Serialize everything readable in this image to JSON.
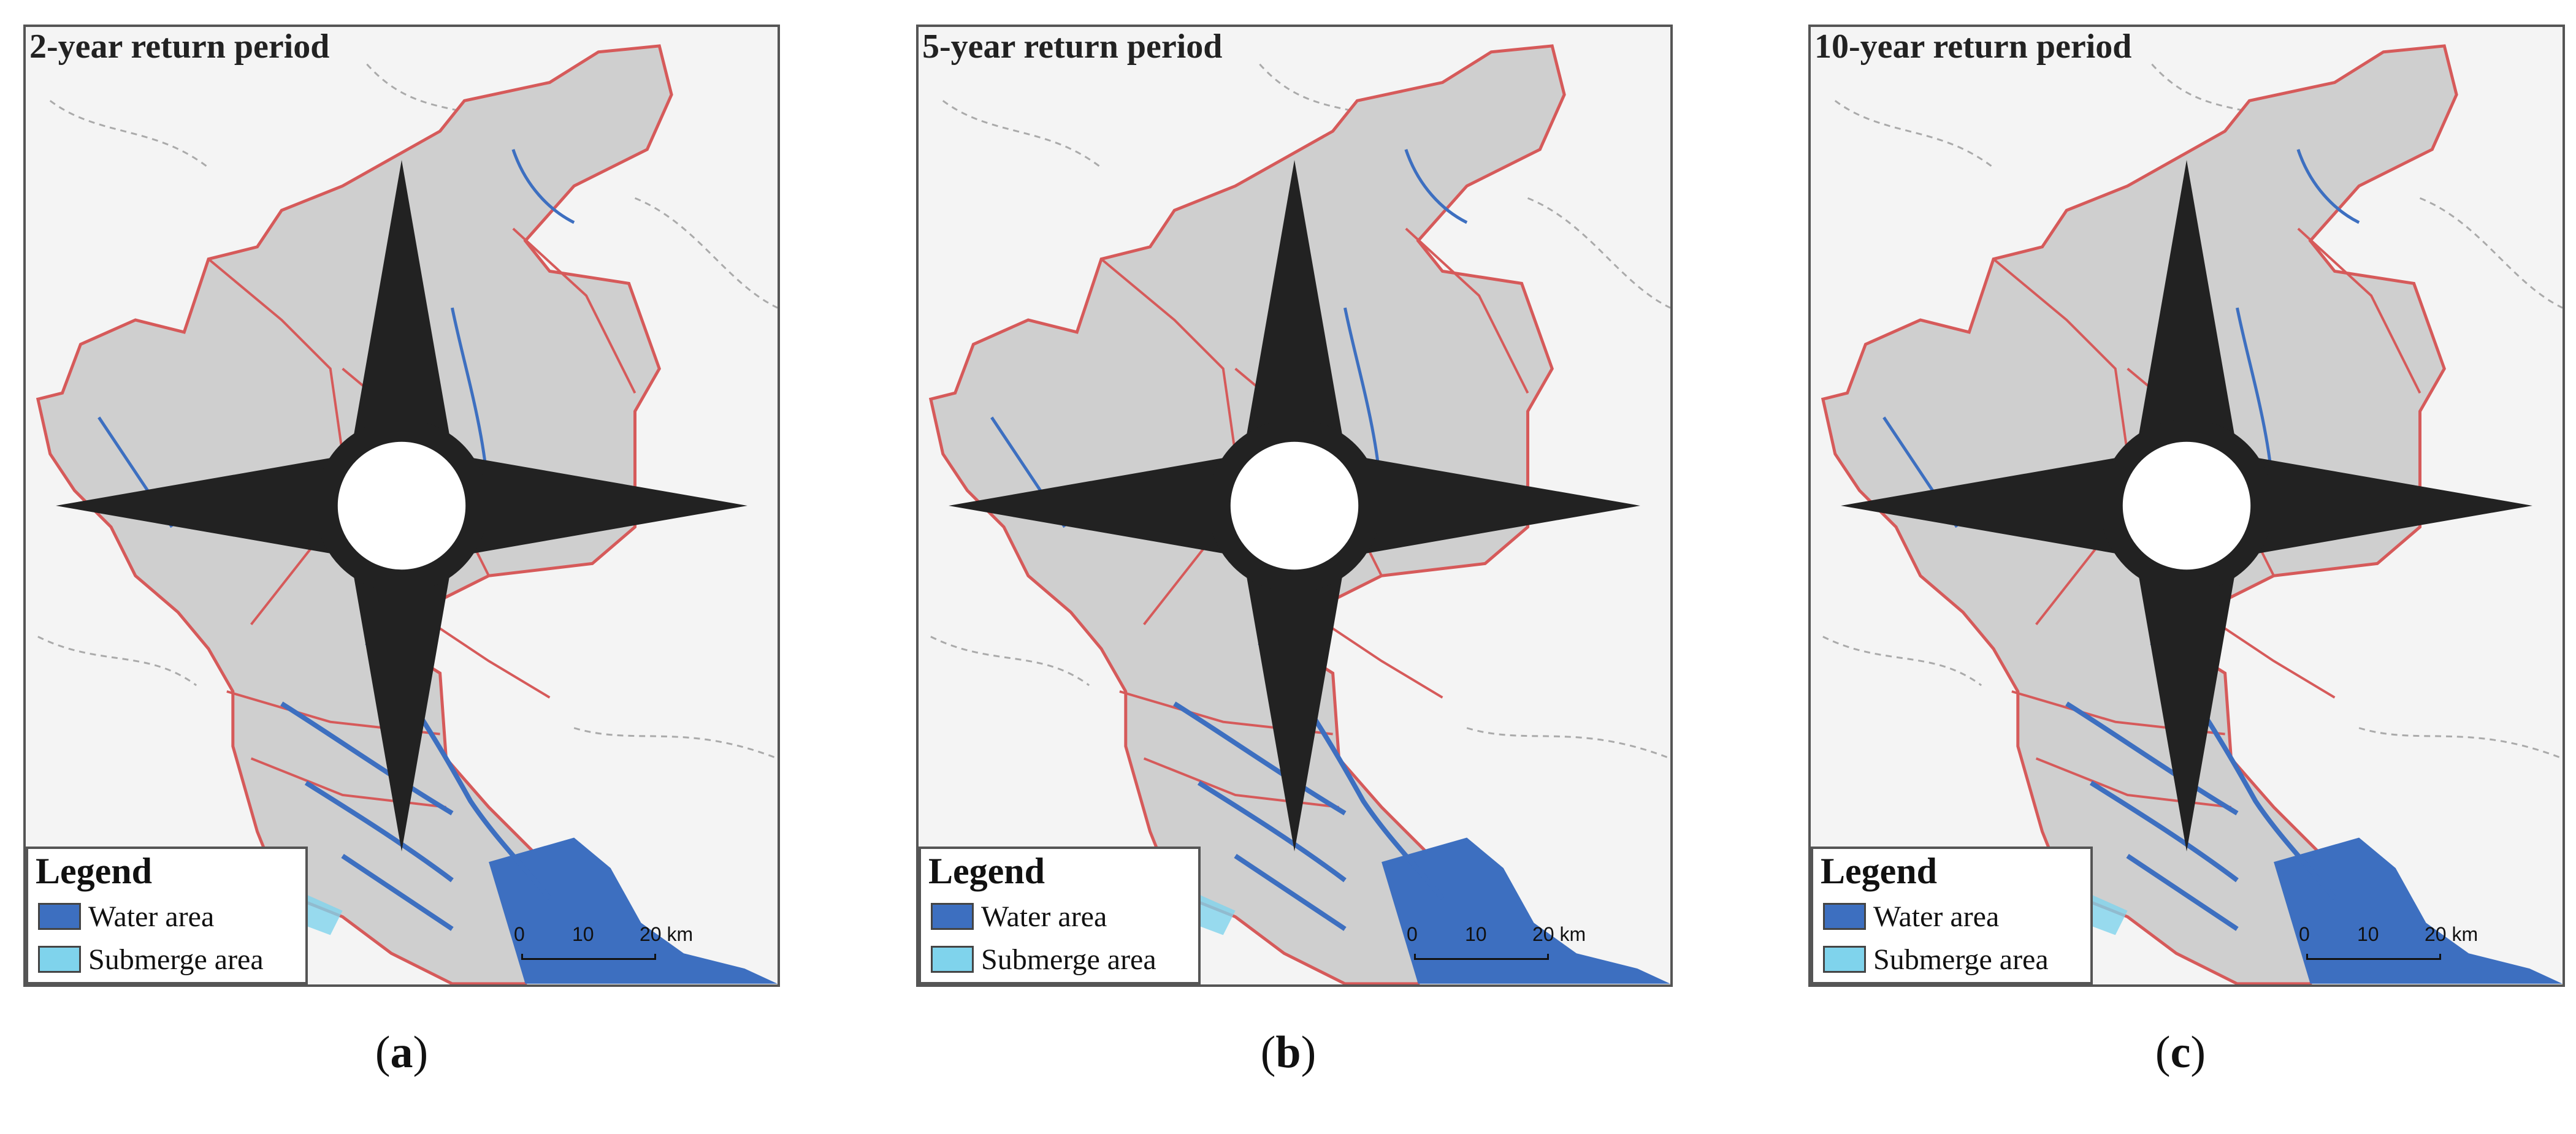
{
  "colors": {
    "water": "#3d6fc0",
    "submerge": "#7fd3ec",
    "boundary": "#d65a5a",
    "land": "#cfcfcf",
    "background": "#f4f4f4"
  },
  "panels": [
    {
      "title": "2-year return period",
      "caption_letter": "a"
    },
    {
      "title": "5-year return period",
      "caption_letter": "b"
    },
    {
      "title": "10-year return period",
      "caption_letter": "c"
    }
  ],
  "legend": {
    "title": "Legend",
    "items": [
      {
        "label": "Water area",
        "color": "#3d6fc0"
      },
      {
        "label": "Submerge area",
        "color": "#7fd3ec"
      }
    ]
  },
  "scale": {
    "ticks": [
      "0",
      "10",
      "20 km"
    ]
  },
  "icons": {
    "compass": "north-arrow-icon"
  }
}
